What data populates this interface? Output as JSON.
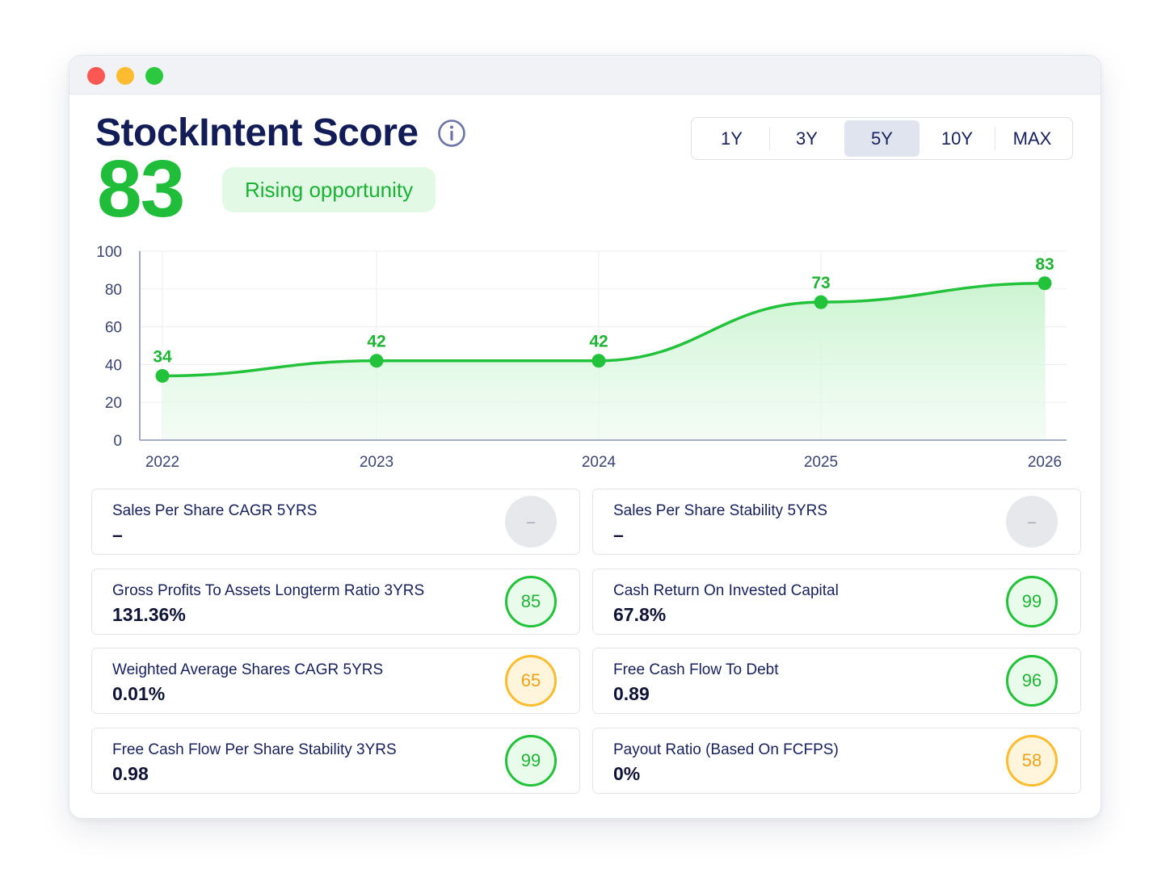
{
  "window": {
    "controls": [
      "close",
      "minimize",
      "maximize"
    ]
  },
  "header": {
    "title": "StockIntent Score",
    "info_icon": "info-icon",
    "score": "83",
    "badge": "Rising opportunity"
  },
  "ranges": [
    {
      "label": "1Y",
      "active": false
    },
    {
      "label": "3Y",
      "active": false
    },
    {
      "label": "5Y",
      "active": true
    },
    {
      "label": "10Y",
      "active": false
    },
    {
      "label": "MAX",
      "active": false
    }
  ],
  "colors": {
    "accent_green": "#1fbd3a",
    "amber": "#fbbd2f",
    "navy": "#121c56",
    "fill_green": "#dff8e2"
  },
  "chart_data": {
    "type": "area",
    "x": [
      "2022",
      "2023",
      "2024",
      "2025",
      "2026"
    ],
    "values": [
      34,
      42,
      42,
      73,
      83
    ],
    "data_labels": [
      "34",
      "42",
      "42",
      "73",
      "83"
    ],
    "yticks": [
      "0",
      "20",
      "40",
      "60",
      "80",
      "100"
    ],
    "ylim": [
      0,
      100
    ],
    "grid": true,
    "title": "",
    "xlabel": "",
    "ylabel": ""
  },
  "metrics": [
    {
      "label": "Sales Per Share CAGR 5YRS",
      "value": "–",
      "score": "–",
      "status": "gray"
    },
    {
      "label": "Sales Per Share Stability 5YRS",
      "value": "–",
      "score": "–",
      "status": "gray"
    },
    {
      "label": "Gross Profits To Assets Longterm Ratio 3YRS",
      "value": "131.36%",
      "score": "85",
      "status": "green"
    },
    {
      "label": "Cash Return On Invested Capital",
      "value": "67.8%",
      "score": "99",
      "status": "green"
    },
    {
      "label": "Weighted Average Shares CAGR 5YRS",
      "value": "0.01%",
      "score": "65",
      "status": "amber"
    },
    {
      "label": "Free Cash Flow To Debt",
      "value": "0.89",
      "score": "96",
      "status": "green"
    },
    {
      "label": "Free Cash Flow Per Share Stability 3YRS",
      "value": "0.98",
      "score": "99",
      "status": "green"
    },
    {
      "label": "Payout Ratio (Based On FCFPS)",
      "value": "0%",
      "score": "58",
      "status": "amber"
    }
  ]
}
